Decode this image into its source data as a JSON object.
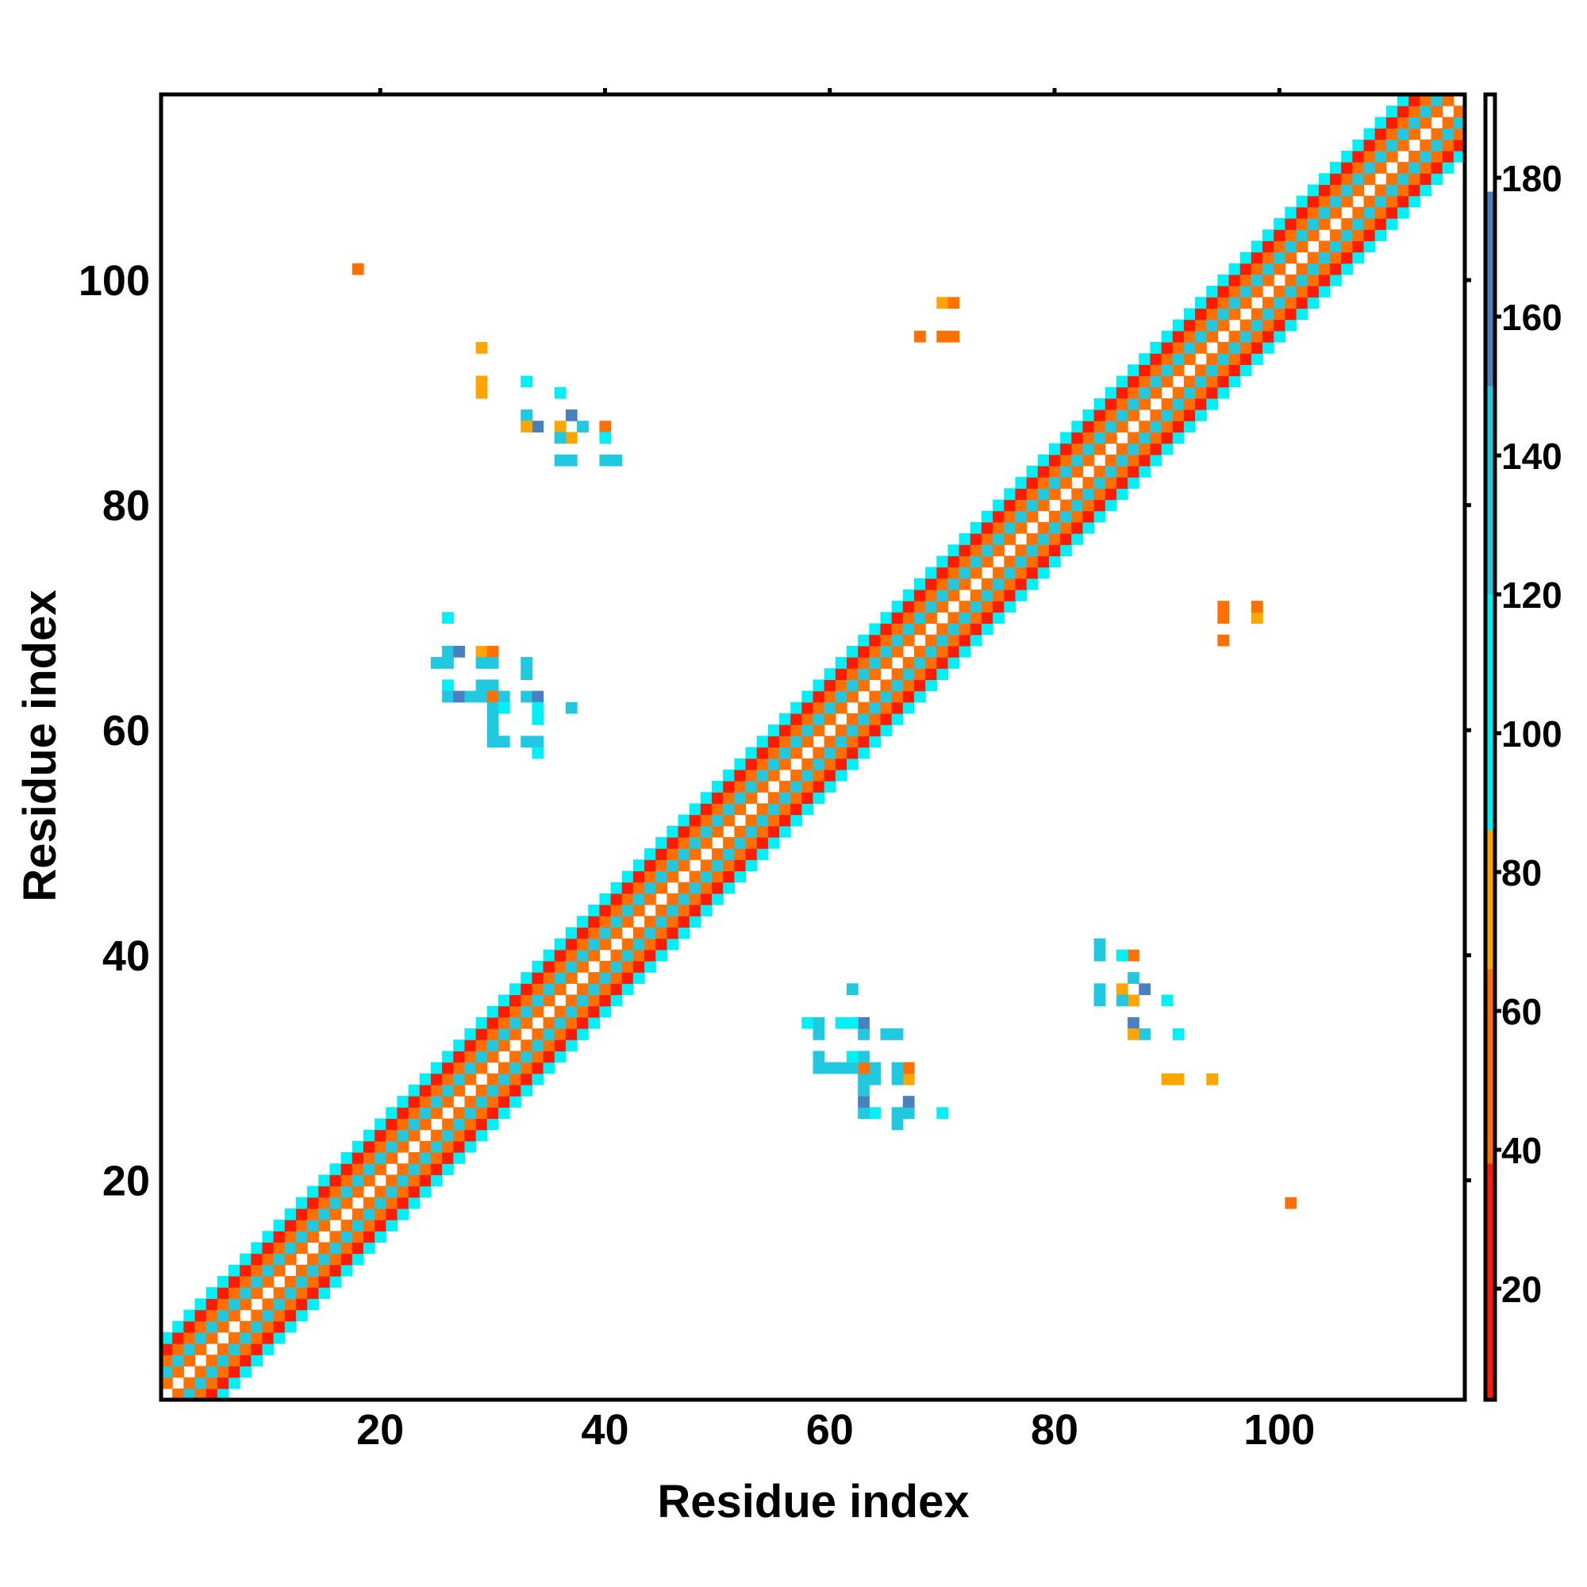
{
  "chart_data": {
    "type": "heatmap",
    "title": "",
    "xlabel": "Residue index",
    "ylabel": "Residue index",
    "xlim": [
      0.5,
      116.5
    ],
    "ylim": [
      0.5,
      116.5
    ],
    "xticks": [
      20,
      40,
      60,
      80,
      100
    ],
    "yticks": [
      20,
      40,
      60,
      80,
      100
    ],
    "n_residues": 116,
    "colorbar": {
      "range": [
        4,
        192
      ],
      "ticks": [
        20,
        40,
        60,
        80,
        100,
        120,
        140,
        160,
        180
      ],
      "bins": [
        {
          "from": 4,
          "to": 38,
          "color": "#ff1a00"
        },
        {
          "from": 38,
          "to": 66,
          "color": "#ff7000"
        },
        {
          "from": 66,
          "to": 86,
          "color": "#ffa500"
        },
        {
          "from": 86,
          "to": 120,
          "color": "#00f0f8"
        },
        {
          "from": 120,
          "to": 150,
          "color": "#20c8e0"
        },
        {
          "from": 150,
          "to": 178,
          "color": "#4a80c0"
        },
        {
          "from": 178,
          "to": 192,
          "color": "#ffffff"
        }
      ]
    },
    "diagonal_band": {
      "offset_values": {
        "1": 55,
        "2": 125,
        "3": 55,
        "4": 20,
        "5": 95
      }
    },
    "off_diagonal_cells": [
      [
        18,
        101,
        55
      ],
      [
        29,
        94,
        75
      ],
      [
        29,
        91,
        75
      ],
      [
        29,
        90,
        75
      ],
      [
        33,
        91,
        95
      ],
      [
        36,
        90,
        95
      ],
      [
        33,
        88,
        130
      ],
      [
        34,
        87,
        160
      ],
      [
        33,
        87,
        75
      ],
      [
        36,
        87,
        75
      ],
      [
        37,
        88,
        160
      ],
      [
        38,
        87,
        130
      ],
      [
        40,
        87,
        55
      ],
      [
        37,
        86,
        75
      ],
      [
        36,
        86,
        130
      ],
      [
        40,
        86,
        95
      ],
      [
        36,
        84,
        130
      ],
      [
        37,
        84,
        130
      ],
      [
        40,
        84,
        130
      ],
      [
        41,
        84,
        130
      ],
      [
        26,
        70,
        95
      ],
      [
        26,
        67,
        130
      ],
      [
        27,
        67,
        160
      ],
      [
        29,
        67,
        75
      ],
      [
        30,
        67,
        55
      ],
      [
        25,
        66,
        130
      ],
      [
        26,
        66,
        130
      ],
      [
        29,
        66,
        130
      ],
      [
        30,
        66,
        130
      ],
      [
        33,
        66,
        130
      ],
      [
        26,
        64,
        95
      ],
      [
        29,
        64,
        130
      ],
      [
        30,
        64,
        130
      ],
      [
        33,
        65,
        130
      ],
      [
        26,
        63,
        130
      ],
      [
        27,
        63,
        160
      ],
      [
        28,
        63,
        130
      ],
      [
        29,
        63,
        130
      ],
      [
        30,
        63,
        55
      ],
      [
        31,
        63,
        130
      ],
      [
        33,
        63,
        130
      ],
      [
        34,
        63,
        160
      ],
      [
        37,
        62,
        130
      ],
      [
        30,
        62,
        130
      ],
      [
        31,
        62,
        95
      ],
      [
        34,
        62,
        95
      ],
      [
        30,
        61,
        130
      ],
      [
        34,
        61,
        95
      ],
      [
        30,
        60,
        130
      ],
      [
        30,
        59,
        130
      ],
      [
        31,
        59,
        130
      ],
      [
        33,
        59,
        130
      ],
      [
        34,
        59,
        130
      ],
      [
        34,
        58,
        95
      ],
      [
        68,
        95,
        55
      ],
      [
        70,
        95,
        55
      ],
      [
        71,
        95,
        55
      ],
      [
        70,
        98,
        75
      ],
      [
        71,
        98,
        55
      ]
    ]
  }
}
